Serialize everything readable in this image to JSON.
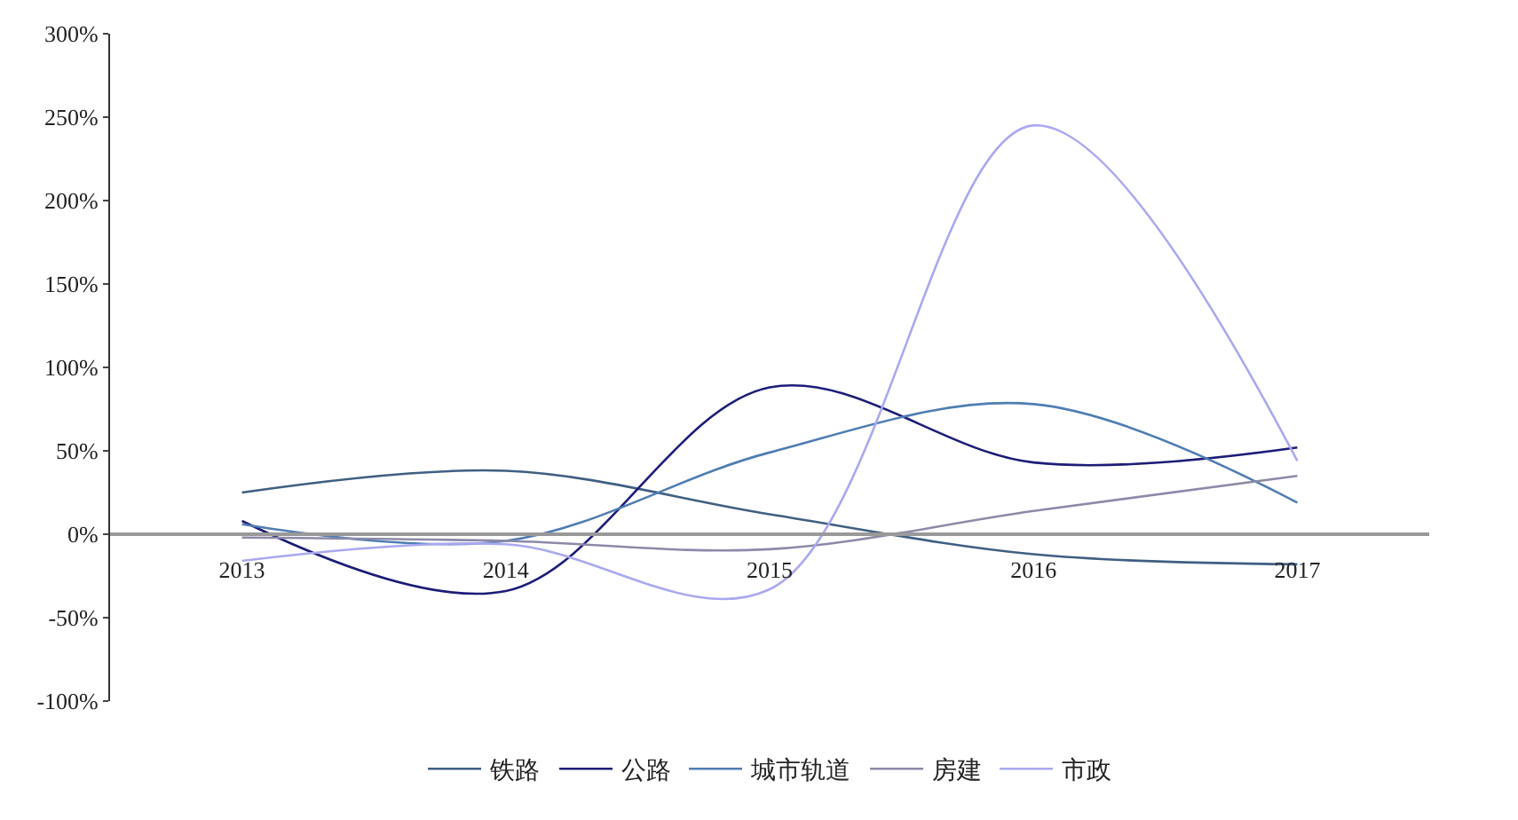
{
  "chart_data": {
    "type": "line",
    "categories": [
      "2013",
      "2014",
      "2015",
      "2016",
      "2017"
    ],
    "series": [
      {
        "name": "铁路",
        "color": "#3f5f82",
        "values": [
          25,
          38,
          12,
          -12,
          -18
        ]
      },
      {
        "name": "公路",
        "color": "#1c1c78",
        "values": [
          8,
          -34,
          88,
          43,
          52
        ]
      },
      {
        "name": "城市轨道",
        "color": "#4f7db2",
        "values": [
          6,
          -4,
          49,
          78,
          19
        ]
      },
      {
        "name": "房建",
        "color": "#8c8aa8",
        "values": [
          -2,
          -4,
          -9,
          14,
          35
        ]
      },
      {
        "name": "市政",
        "color": "#a9a8f0",
        "values": [
          -16,
          -6,
          -33,
          245,
          44
        ]
      }
    ],
    "ylim": [
      -100,
      300
    ],
    "yticks": [
      {
        "value": -100,
        "label": "-100%"
      },
      {
        "value": -50,
        "label": "-50%"
      },
      {
        "value": 0,
        "label": "0%"
      },
      {
        "value": 50,
        "label": "50%"
      },
      {
        "value": 100,
        "label": "100%"
      },
      {
        "value": 150,
        "label": "150%"
      },
      {
        "value": 200,
        "label": "200%"
      },
      {
        "value": 250,
        "label": "250%"
      },
      {
        "value": 300,
        "label": "300%"
      }
    ],
    "legend": "bottom",
    "marker": "none",
    "line_style": "solid"
  }
}
